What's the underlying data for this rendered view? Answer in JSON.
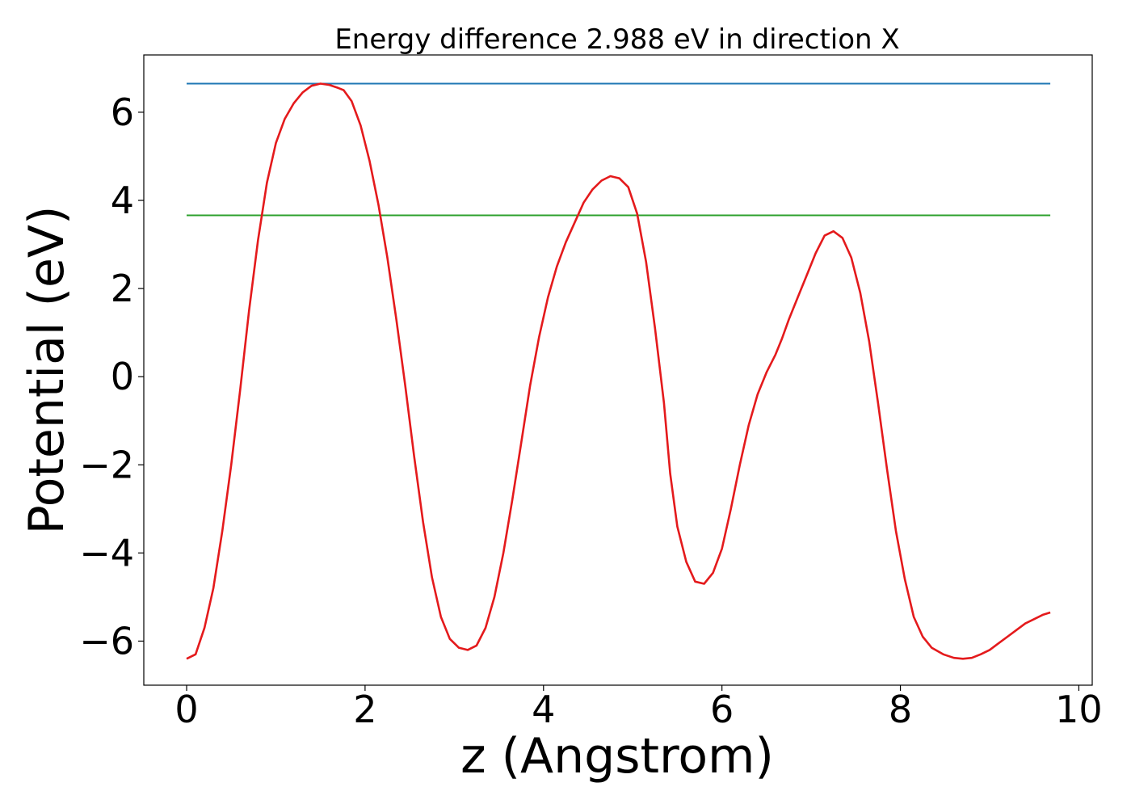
{
  "chart_data": {
    "type": "line",
    "title": "Energy difference 2.988 eV in direction X",
    "xlabel": "z (Angstrom)",
    "ylabel": "Potential (eV)",
    "xlim": [
      -0.48,
      10.15
    ],
    "ylim": [
      -7.0,
      7.3
    ],
    "grid": false,
    "x_ticks": [
      0,
      2,
      4,
      6,
      8,
      10
    ],
    "y_ticks": [
      -6,
      -4,
      -2,
      0,
      2,
      4,
      6
    ],
    "x_tick_labels": [
      "0",
      "2",
      "4",
      "6",
      "8",
      "10"
    ],
    "y_tick_labels": [
      "−6",
      "−4",
      "−2",
      "0",
      "2",
      "4",
      "6"
    ],
    "series": [
      {
        "color": "#1f77b4",
        "x": [
          0,
          9.68
        ],
        "y": [
          6.65,
          6.65
        ]
      },
      {
        "color": "#2ca02c",
        "x": [
          0,
          9.68
        ],
        "y": [
          3.66,
          3.66
        ]
      },
      {
        "color": "#e41a1c",
        "x": [
          0,
          0.1,
          0.2,
          0.3,
          0.4,
          0.5,
          0.6,
          0.7,
          0.8,
          0.9,
          1.0,
          1.1,
          1.2,
          1.3,
          1.4,
          1.5,
          1.6,
          1.7,
          1.76,
          1.85,
          1.95,
          2.05,
          2.15,
          2.25,
          2.35,
          2.45,
          2.55,
          2.65,
          2.75,
          2.85,
          2.95,
          3.05,
          3.15,
          3.25,
          3.35,
          3.45,
          3.55,
          3.65,
          3.75,
          3.85,
          3.95,
          4.05,
          4.15,
          4.25,
          4.35,
          4.45,
          4.55,
          4.65,
          4.75,
          4.85,
          4.95,
          5.05,
          5.15,
          5.25,
          5.35,
          5.42,
          5.5,
          5.6,
          5.7,
          5.8,
          5.9,
          6.0,
          6.1,
          6.2,
          6.3,
          6.4,
          6.5,
          6.6,
          6.67,
          6.75,
          6.85,
          6.95,
          7.05,
          7.15,
          7.25,
          7.35,
          7.45,
          7.55,
          7.65,
          7.75,
          7.85,
          7.95,
          8.05,
          8.15,
          8.25,
          8.35,
          8.48,
          8.6,
          8.7,
          8.8,
          8.9,
          9.0,
          9.1,
          9.2,
          9.3,
          9.4,
          9.5,
          9.6,
          9.68
        ],
        "y": [
          -6.4,
          -6.3,
          -5.7,
          -4.8,
          -3.5,
          -2.0,
          -0.3,
          1.5,
          3.1,
          4.4,
          5.3,
          5.85,
          6.2,
          6.45,
          6.6,
          6.65,
          6.62,
          6.55,
          6.5,
          6.25,
          5.7,
          4.9,
          3.9,
          2.7,
          1.3,
          -0.2,
          -1.8,
          -3.3,
          -4.55,
          -5.45,
          -5.95,
          -6.15,
          -6.2,
          -6.1,
          -5.7,
          -5.0,
          -4.0,
          -2.8,
          -1.5,
          -0.2,
          0.9,
          1.8,
          2.5,
          3.05,
          3.5,
          3.95,
          4.25,
          4.45,
          4.55,
          4.5,
          4.3,
          3.7,
          2.6,
          1.1,
          -0.6,
          -2.2,
          -3.4,
          -4.2,
          -4.65,
          -4.7,
          -4.45,
          -3.9,
          -3.0,
          -2.0,
          -1.1,
          -0.4,
          0.1,
          0.5,
          0.85,
          1.3,
          1.8,
          2.3,
          2.8,
          3.2,
          3.3,
          3.15,
          2.7,
          1.9,
          0.8,
          -0.6,
          -2.1,
          -3.5,
          -4.6,
          -5.45,
          -5.9,
          -6.15,
          -6.3,
          -6.38,
          -6.4,
          -6.38,
          -6.3,
          -6.2,
          -6.05,
          -5.9,
          -5.75,
          -5.6,
          -5.5,
          -5.4,
          -5.35
        ]
      }
    ]
  }
}
